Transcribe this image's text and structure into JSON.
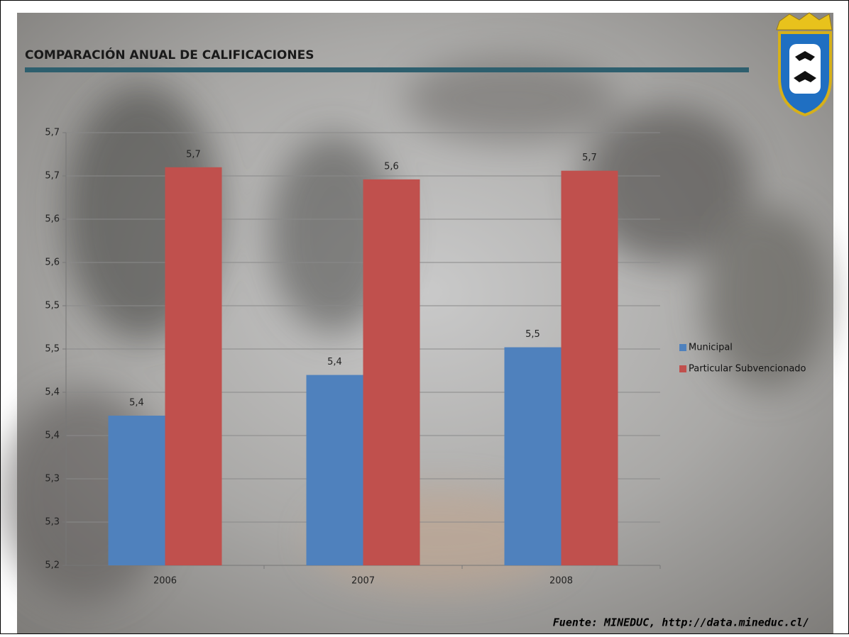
{
  "chart_data": {
    "type": "bar",
    "title": "COMPARACIÓN ANUAL DE CALIFICACIONES",
    "source": "Fuente: MINEDUC, http://data.mineduc.cl/",
    "categories": [
      "2006",
      "2007",
      "2008"
    ],
    "series": [
      {
        "name": "Municipal",
        "color": "#4f81bd",
        "values": [
          5.373,
          5.42,
          5.452
        ],
        "value_labels": [
          "5,4",
          "5,4",
          "5,5"
        ]
      },
      {
        "name": "Particular Subvencionado",
        "color": "#c0504d",
        "values": [
          5.66,
          5.646,
          5.656
        ],
        "value_labels": [
          "5,7",
          "5,6",
          "5,7"
        ]
      }
    ],
    "ylim": [
      5.2,
      5.7
    ],
    "yticks": [
      {
        "value": 5.2,
        "label": "5,2"
      },
      {
        "value": 5.25,
        "label": "5,3"
      },
      {
        "value": 5.3,
        "label": "5,3"
      },
      {
        "value": 5.35,
        "label": "5,4"
      },
      {
        "value": 5.4,
        "label": "5,4"
      },
      {
        "value": 5.45,
        "label": "5,5"
      },
      {
        "value": 5.5,
        "label": "5,5"
      },
      {
        "value": 5.55,
        "label": "5,6"
      },
      {
        "value": 5.6,
        "label": "5,6"
      },
      {
        "value": 5.65,
        "label": "5,7"
      },
      {
        "value": 5.7,
        "label": "5,7"
      }
    ],
    "grid": true,
    "legend": "right"
  }
}
